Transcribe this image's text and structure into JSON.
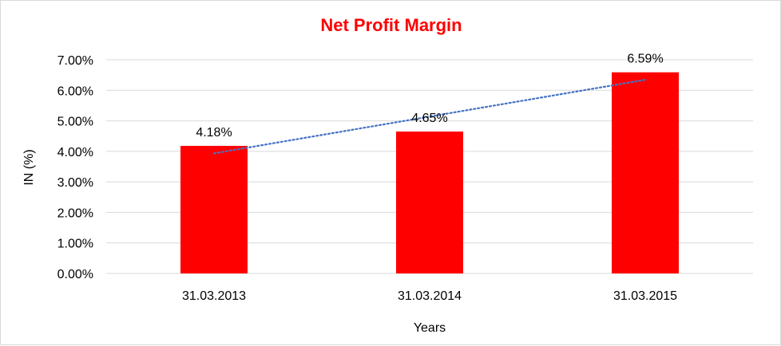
{
  "chart_data": {
    "type": "bar",
    "title": "Net Profit Margin",
    "xlabel": "Years",
    "ylabel": "IN (%)",
    "categories": [
      "31.03.2013",
      "31.03.2014",
      "31.03.2015"
    ],
    "values": [
      4.18,
      4.65,
      6.59
    ],
    "value_labels": [
      "4.18%",
      "4.65%",
      "6.59%"
    ],
    "ylim": [
      0,
      7
    ],
    "y_ticks": [
      0,
      1,
      2,
      3,
      4,
      5,
      6,
      7
    ],
    "y_tick_labels": [
      "0.00%",
      "1.00%",
      "2.00%",
      "3.00%",
      "4.00%",
      "5.00%",
      "6.00%",
      "7.00%"
    ],
    "grid": true,
    "trendline": {
      "type": "linear",
      "style": "dotted",
      "color": "#4472c4"
    },
    "colors": {
      "bar": "#ff0000",
      "title": "#ff0000",
      "grid": "#d9d9d9"
    }
  }
}
